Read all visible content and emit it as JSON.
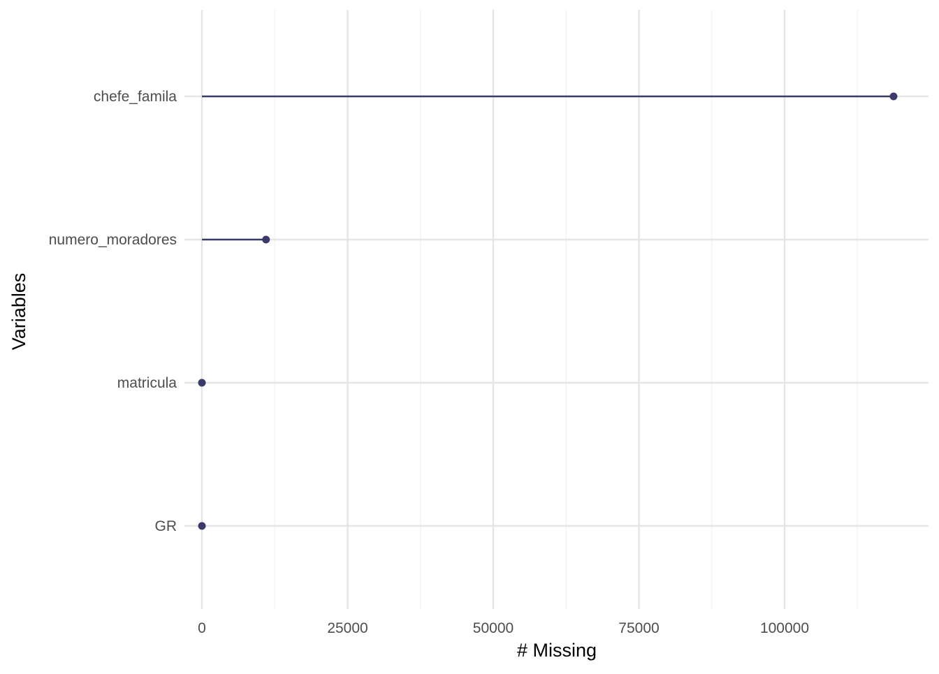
{
  "chart_data": {
    "type": "lollipop",
    "categories": [
      "chefe_famila",
      "numero_moradores",
      "matricula",
      "GR"
    ],
    "values": [
      118700,
      11000,
      0,
      0
    ],
    "xlabel": "# Missing",
    "ylabel": "Variables",
    "xlim": [
      -3000,
      124700
    ],
    "x_ticks": [
      0,
      25000,
      50000,
      75000,
      100000
    ],
    "x_tick_labels": [
      "0",
      "25000",
      "50000",
      "75000",
      "100000"
    ],
    "x_minor_ticks": [
      12500,
      37500,
      62500,
      87500,
      112500
    ],
    "grid": true,
    "legend": "none",
    "colors": {
      "series": "#3b3b6b",
      "grid_major": "#e5e5e5",
      "grid_minor": "#f0f0f0",
      "tick_text": "#4d4d4d",
      "title_text": "#000000"
    }
  }
}
